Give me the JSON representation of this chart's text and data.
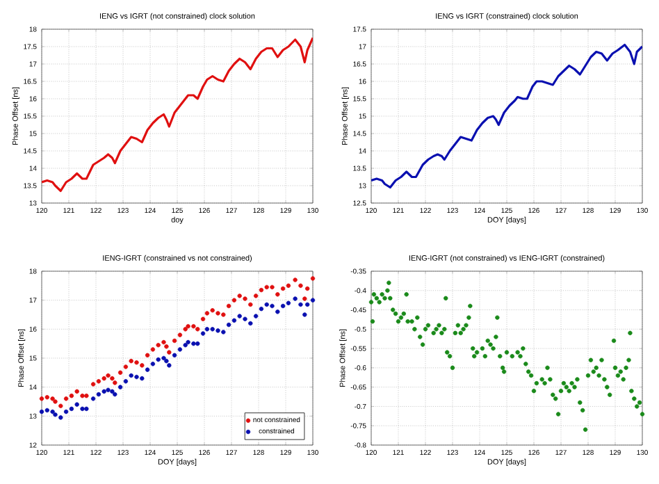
{
  "chart_data": [
    {
      "type": "line",
      "title": "IENG vs IGRT (not constrained) clock solution",
      "xlabel": "doy",
      "ylabel": "Phase Offset [ns]",
      "xlim": [
        120,
        130
      ],
      "xticks": [
        120,
        121,
        122,
        123,
        124,
        125,
        126,
        127,
        128,
        129,
        130
      ],
      "ylim": [
        13,
        18
      ],
      "yticks": [
        13,
        13.5,
        14,
        14.5,
        15,
        15.5,
        16,
        16.5,
        17,
        17.5,
        18
      ],
      "grid": true,
      "series": [
        {
          "color": "#e01010",
          "x": [
            120,
            120.2,
            120.4,
            120.5,
            120.7,
            120.9,
            121.1,
            121.3,
            121.5,
            121.65,
            121.9,
            122.1,
            122.3,
            122.45,
            122.6,
            122.7,
            122.9,
            123.1,
            123.3,
            123.5,
            123.7,
            123.9,
            124.1,
            124.3,
            124.5,
            124.6,
            124.7,
            124.9,
            125.1,
            125.3,
            125.4,
            125.6,
            125.75,
            125.95,
            126.1,
            126.3,
            126.5,
            126.7,
            126.9,
            127.1,
            127.3,
            127.5,
            127.7,
            127.9,
            128.1,
            128.3,
            128.5,
            128.7,
            128.9,
            129.1,
            129.35,
            129.55,
            129.7,
            129.8,
            130
          ],
          "values": [
            13.6,
            13.65,
            13.6,
            13.5,
            13.35,
            13.6,
            13.7,
            13.85,
            13.7,
            13.7,
            14.1,
            14.2,
            14.3,
            14.4,
            14.3,
            14.15,
            14.5,
            14.7,
            14.9,
            14.85,
            14.75,
            15.1,
            15.3,
            15.45,
            15.55,
            15.4,
            15.2,
            15.6,
            15.8,
            16.0,
            16.1,
            16.1,
            16.0,
            16.35,
            16.55,
            16.65,
            16.55,
            16.5,
            16.8,
            17.0,
            17.15,
            17.05,
            16.85,
            17.15,
            17.35,
            17.45,
            17.45,
            17.2,
            17.4,
            17.5,
            17.7,
            17.5,
            17.05,
            17.4,
            17.75
          ]
        }
      ]
    },
    {
      "type": "line",
      "title": "IENG vs IGRT (constrained) clock solution",
      "xlabel": "DOY [days]",
      "ylabel": "Phase Offset [ns]",
      "xlim": [
        120,
        130
      ],
      "xticks": [
        120,
        121,
        122,
        123,
        124,
        125,
        126,
        127,
        128,
        129,
        130
      ],
      "ylim": [
        12.5,
        17.5
      ],
      "yticks": [
        12.5,
        13,
        13.5,
        14,
        14.5,
        15,
        15.5,
        16,
        16.5,
        17,
        17.5
      ],
      "grid": true,
      "series": [
        {
          "color": "#0a10b0",
          "x": [
            120,
            120.2,
            120.4,
            120.5,
            120.7,
            120.9,
            121.1,
            121.3,
            121.5,
            121.65,
            121.9,
            122.1,
            122.3,
            122.45,
            122.6,
            122.7,
            122.9,
            123.1,
            123.3,
            123.5,
            123.7,
            123.9,
            124.1,
            124.3,
            124.5,
            124.6,
            124.7,
            124.9,
            125.1,
            125.3,
            125.4,
            125.6,
            125.75,
            125.95,
            126.1,
            126.3,
            126.5,
            126.7,
            126.9,
            127.1,
            127.3,
            127.5,
            127.7,
            127.9,
            128.1,
            128.3,
            128.5,
            128.7,
            128.9,
            129.1,
            129.35,
            129.55,
            129.7,
            129.8,
            130
          ],
          "values": [
            13.15,
            13.2,
            13.15,
            13.05,
            12.95,
            13.15,
            13.25,
            13.4,
            13.25,
            13.25,
            13.6,
            13.75,
            13.85,
            13.9,
            13.85,
            13.75,
            14.0,
            14.2,
            14.4,
            14.35,
            14.3,
            14.6,
            14.8,
            14.95,
            15.0,
            14.9,
            14.75,
            15.1,
            15.3,
            15.45,
            15.55,
            15.5,
            15.5,
            15.85,
            16.0,
            16.0,
            15.95,
            15.9,
            16.15,
            16.3,
            16.45,
            16.35,
            16.2,
            16.45,
            16.7,
            16.85,
            16.8,
            16.6,
            16.8,
            16.9,
            17.05,
            16.85,
            16.5,
            16.85,
            17.0
          ]
        }
      ]
    },
    {
      "type": "scatter",
      "title": "IENG-IGRT (constrained vs not constrained)",
      "xlabel": "DOY [days]",
      "ylabel": "Phase Offset [ns]",
      "xlim": [
        120,
        130
      ],
      "xticks": [
        120,
        121,
        122,
        123,
        124,
        125,
        126,
        127,
        128,
        129,
        130
      ],
      "ylim": [
        12,
        18
      ],
      "yticks": [
        12,
        13,
        14,
        15,
        16,
        17,
        18
      ],
      "grid": true,
      "legend": "bottom right",
      "series": [
        {
          "name": "not constrained",
          "color": "#e01010",
          "x": [
            120,
            120.2,
            120.4,
            120.5,
            120.7,
            120.9,
            121.1,
            121.3,
            121.5,
            121.65,
            121.9,
            122.1,
            122.3,
            122.45,
            122.6,
            122.7,
            122.9,
            123.1,
            123.3,
            123.5,
            123.7,
            123.9,
            124.1,
            124.3,
            124.5,
            124.6,
            124.7,
            124.9,
            125.1,
            125.3,
            125.4,
            125.6,
            125.75,
            125.95,
            126.1,
            126.3,
            126.5,
            126.7,
            126.9,
            127.1,
            127.3,
            127.5,
            127.7,
            127.9,
            128.1,
            128.3,
            128.5,
            128.7,
            128.9,
            129.1,
            129.35,
            129.55,
            129.7,
            129.8,
            130
          ],
          "values": [
            13.6,
            13.65,
            13.6,
            13.5,
            13.35,
            13.6,
            13.7,
            13.85,
            13.7,
            13.7,
            14.1,
            14.2,
            14.3,
            14.4,
            14.3,
            14.15,
            14.5,
            14.7,
            14.9,
            14.85,
            14.75,
            15.1,
            15.3,
            15.45,
            15.55,
            15.4,
            15.2,
            15.6,
            15.8,
            16.0,
            16.1,
            16.1,
            16.0,
            16.35,
            16.55,
            16.65,
            16.55,
            16.5,
            16.8,
            17.0,
            17.15,
            17.05,
            16.85,
            17.15,
            17.35,
            17.45,
            17.45,
            17.2,
            17.4,
            17.5,
            17.7,
            17.5,
            17.05,
            17.4,
            17.75
          ]
        },
        {
          "name": "constrained",
          "color": "#0a10b0",
          "x": [
            120,
            120.2,
            120.4,
            120.5,
            120.7,
            120.9,
            121.1,
            121.3,
            121.5,
            121.65,
            121.9,
            122.1,
            122.3,
            122.45,
            122.6,
            122.7,
            122.9,
            123.1,
            123.3,
            123.5,
            123.7,
            123.9,
            124.1,
            124.3,
            124.5,
            124.6,
            124.7,
            124.9,
            125.1,
            125.3,
            125.4,
            125.6,
            125.75,
            125.95,
            126.1,
            126.3,
            126.5,
            126.7,
            126.9,
            127.1,
            127.3,
            127.5,
            127.7,
            127.9,
            128.1,
            128.3,
            128.5,
            128.7,
            128.9,
            129.1,
            129.35,
            129.55,
            129.7,
            129.8,
            130
          ],
          "values": [
            13.15,
            13.2,
            13.15,
            13.05,
            12.95,
            13.15,
            13.25,
            13.4,
            13.25,
            13.25,
            13.6,
            13.75,
            13.85,
            13.9,
            13.85,
            13.75,
            14.0,
            14.2,
            14.4,
            14.35,
            14.3,
            14.6,
            14.8,
            14.95,
            15.0,
            14.9,
            14.75,
            15.1,
            15.3,
            15.45,
            15.55,
            15.5,
            15.5,
            15.85,
            16.0,
            16.0,
            15.95,
            15.9,
            16.15,
            16.3,
            16.45,
            16.35,
            16.2,
            16.45,
            16.7,
            16.85,
            16.8,
            16.6,
            16.8,
            16.9,
            17.05,
            16.85,
            16.5,
            16.85,
            17.0
          ]
        }
      ]
    },
    {
      "type": "scatter",
      "title": "IENG-IGRT (not constrained) vs IENG-IGRT (constrained)",
      "xlabel": "DOY [days]",
      "ylabel": "Phase Offset [ns]",
      "xlim": [
        120,
        130
      ],
      "xticks": [
        120,
        121,
        122,
        123,
        124,
        125,
        126,
        127,
        128,
        129,
        130
      ],
      "ylim": [
        -0.8,
        -0.35
      ],
      "yticks": [
        -0.8,
        -0.75,
        -0.7,
        -0.65,
        -0.6,
        -0.55,
        -0.5,
        -0.45,
        -0.4,
        -0.35
      ],
      "grid": true,
      "series": [
        {
          "color": "#1a8a1a",
          "x": [
            120.0,
            120.05,
            120.1,
            120.2,
            120.3,
            120.4,
            120.5,
            120.6,
            120.65,
            120.7,
            120.8,
            120.9,
            121.0,
            121.1,
            121.2,
            121.3,
            121.35,
            121.5,
            121.6,
            121.7,
            121.8,
            121.9,
            122.0,
            122.1,
            122.3,
            122.4,
            122.5,
            122.6,
            122.7,
            122.75,
            122.8,
            122.9,
            123.0,
            123.1,
            123.2,
            123.3,
            123.4,
            123.5,
            123.6,
            123.65,
            123.75,
            123.8,
            123.9,
            124.1,
            124.2,
            124.3,
            124.4,
            124.5,
            124.6,
            124.65,
            124.75,
            124.85,
            124.9,
            125.0,
            125.2,
            125.4,
            125.5,
            125.6,
            125.7,
            125.8,
            125.9,
            126.0,
            126.1,
            126.3,
            126.4,
            126.5,
            126.6,
            126.7,
            126.8,
            126.9,
            127.0,
            127.1,
            127.2,
            127.3,
            127.4,
            127.5,
            127.6,
            127.7,
            127.8,
            127.9,
            128.0,
            128.1,
            128.2,
            128.3,
            128.4,
            128.5,
            128.6,
            128.7,
            128.8,
            128.95,
            129.0,
            129.1,
            129.2,
            129.3,
            129.4,
            129.5,
            129.55,
            129.6,
            129.7,
            129.8,
            129.9,
            130.0
          ],
          "values": [
            -0.43,
            -0.48,
            -0.41,
            -0.42,
            -0.43,
            -0.41,
            -0.42,
            -0.4,
            -0.38,
            -0.42,
            -0.45,
            -0.46,
            -0.48,
            -0.47,
            -0.46,
            -0.41,
            -0.48,
            -0.48,
            -0.5,
            -0.47,
            -0.52,
            -0.54,
            -0.5,
            -0.49,
            -0.51,
            -0.5,
            -0.49,
            -0.51,
            -0.5,
            -0.42,
            -0.56,
            -0.57,
            -0.6,
            -0.51,
            -0.49,
            -0.51,
            -0.5,
            -0.49,
            -0.47,
            -0.44,
            -0.55,
            -0.57,
            -0.56,
            -0.55,
            -0.57,
            -0.53,
            -0.54,
            -0.55,
            -0.52,
            -0.47,
            -0.57,
            -0.6,
            -0.61,
            -0.56,
            -0.57,
            -0.56,
            -0.57,
            -0.55,
            -0.59,
            -0.61,
            -0.62,
            -0.66,
            -0.64,
            -0.63,
            -0.64,
            -0.6,
            -0.63,
            -0.67,
            -0.68,
            -0.72,
            -0.66,
            -0.64,
            -0.65,
            -0.66,
            -0.64,
            -0.65,
            -0.63,
            -0.69,
            -0.71,
            -0.76,
            -0.62,
            -0.58,
            -0.61,
            -0.6,
            -0.62,
            -0.58,
            -0.63,
            -0.65,
            -0.67,
            -0.53,
            -0.6,
            -0.62,
            -0.61,
            -0.63,
            -0.6,
            -0.58,
            -0.51,
            -0.66,
            -0.68,
            -0.7,
            -0.69,
            -0.72
          ]
        }
      ]
    }
  ]
}
